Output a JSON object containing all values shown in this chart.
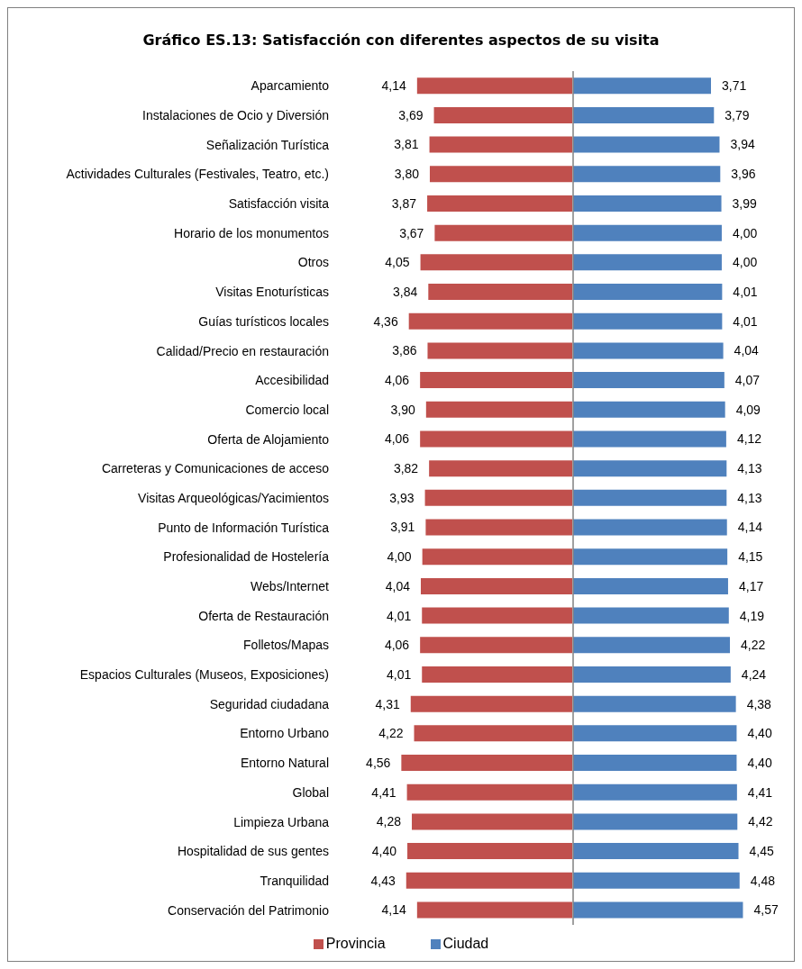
{
  "chart_data": [
    {
      "type": "bar",
      "orientation": "horizontal",
      "title": "Gráfico ES.13: Satisfacción con diferentes aspectos de su visita",
      "legend": "bottom",
      "tick_labels": "y",
      "categories": [
        "Aparcamiento",
        "Instalaciones de Ocio y Diversión",
        "Señalización Turística",
        "Actividades Culturales (Festivales, Teatro, etc.)",
        "Satisfacción visita",
        "Horario de los monumentos",
        "Otros",
        "Visitas Enoturísticas",
        "Guías turísticos locales",
        "Calidad/Precio en restauración",
        "Accesibilidad",
        "Comercio local",
        "Oferta de Alojamiento",
        "Carreteras y Comunicaciones de acceso",
        "Visitas Arqueológicas/Yacimientos",
        "Punto de Información Turística",
        "Profesionalidad de Hostelería",
        "Webs/Internet",
        "Oferta de Restauración",
        "Folletos/Mapas",
        "Espacios Culturales (Museos, Exposiciones)",
        "Seguridad ciudadana",
        "Entorno Urbano",
        "Entorno Natural",
        "Global",
        "Limpieza Urbana",
        "Hospitalidad de sus gentes",
        "Tranquilidad",
        "Conservación del Patrimonio"
      ],
      "series": [
        {
          "name": "Provincia",
          "color": "#c0504d",
          "values": [
            4.14,
            3.69,
            3.81,
            3.8,
            3.87,
            3.67,
            4.05,
            3.84,
            4.36,
            3.86,
            4.06,
            3.9,
            4.06,
            3.82,
            3.93,
            3.91,
            4.0,
            4.04,
            4.01,
            4.06,
            4.01,
            4.31,
            4.22,
            4.56,
            4.41,
            4.28,
            4.4,
            4.43,
            4.14
          ],
          "value_labels": [
            "4,14",
            "3,69",
            "3,81",
            "3,80",
            "3,87",
            "3,67",
            "4,05",
            "3,84",
            "4,36",
            "3,86",
            "4,06",
            "3,90",
            "4,06",
            "3,82",
            "3,93",
            "3,91",
            "4,00",
            "4,04",
            "4,01",
            "4,06",
            "4,01",
            "4,31",
            "4,22",
            "4,56",
            "4,41",
            "4,28",
            "4,40",
            "4,43",
            "4,14"
          ]
        }
      ]
    },
    {
      "type": "bar",
      "orientation": "horizontal",
      "tick_labels": false,
      "categories": [
        null,
        null,
        null,
        null,
        null,
        null,
        null,
        null,
        null,
        null,
        null,
        null,
        null,
        null,
        null,
        null,
        null,
        null,
        null,
        null,
        null,
        null,
        null,
        null,
        null,
        null,
        null,
        null,
        null
      ],
      "series": [
        {
          "name": "Ciudad",
          "color": "#4f81bd",
          "values": [
            3.71,
            3.79,
            3.94,
            3.96,
            3.99,
            4.0,
            4.0,
            4.01,
            4.01,
            4.04,
            4.07,
            4.09,
            4.12,
            4.13,
            4.13,
            4.14,
            4.15,
            4.17,
            4.19,
            4.22,
            4.24,
            4.38,
            4.4,
            4.4,
            4.41,
            4.42,
            4.45,
            4.48,
            4.57
          ],
          "value_labels": [
            "3,71",
            "3,79",
            "3,94",
            "3,96",
            "3,99",
            "4,00",
            "4,00",
            "4,01",
            "4,01",
            "4,04",
            "4,07",
            "4,09",
            "4,12",
            "4,13",
            "4,13",
            "4,14",
            "4,15",
            "4,17",
            "4,19",
            "4,22",
            "4,24",
            "4,38",
            "4,40",
            "4,40",
            "4,41",
            "4,42",
            "4,45",
            "4,48",
            "4,57"
          ]
        }
      ]
    }
  ]
}
